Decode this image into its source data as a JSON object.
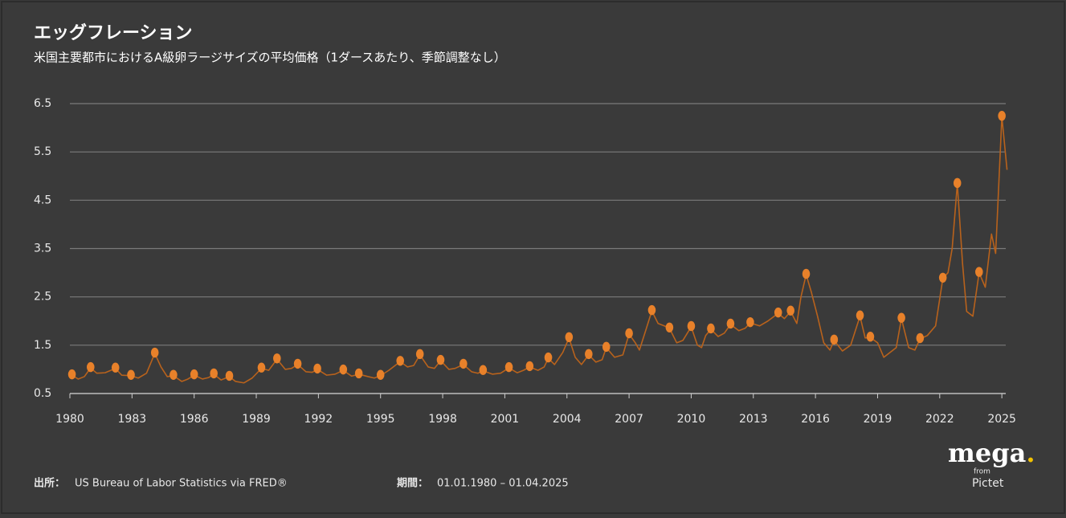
{
  "chart_data": {
    "type": "line",
    "title": "エッグフレーション",
    "subtitle": "米国主要都市におけるA級卵ラージサイズの平均価格（1ダースあたり、季節調整なし）",
    "color": "#b8621c",
    "x": [
      1980.0,
      1980.1,
      1980.4,
      1980.7,
      1981.0,
      1981.3,
      1981.7,
      1982.2,
      1982.5,
      1982.95,
      1983.3,
      1983.7,
      1984.1,
      1984.4,
      1984.7,
      1985.0,
      1985.4,
      1985.7,
      1986.0,
      1986.4,
      1986.7,
      1986.95,
      1987.3,
      1987.7,
      1988.0,
      1988.4,
      1988.8,
      1989.25,
      1989.6,
      1990.0,
      1990.4,
      1990.7,
      1991.0,
      1991.4,
      1991.7,
      1991.95,
      1992.4,
      1992.8,
      1993.2,
      1993.6,
      1993.95,
      1994.4,
      1994.7,
      1995.0,
      1995.4,
      1995.95,
      1996.3,
      1996.6,
      1996.9,
      1997.3,
      1997.6,
      1997.9,
      1998.3,
      1998.6,
      1999.0,
      1999.4,
      1999.7,
      1999.95,
      2000.4,
      2000.8,
      2001.2,
      2001.6,
      2001.9,
      2002.2,
      2002.6,
      2002.9,
      2003.1,
      2003.4,
      2003.8,
      2004.1,
      2004.4,
      2004.7,
      2005.05,
      2005.4,
      2005.7,
      2005.9,
      2006.3,
      2006.7,
      2007.0,
      2007.3,
      2007.5,
      2007.8,
      2008.1,
      2008.4,
      2008.7,
      2008.95,
      2009.3,
      2009.6,
      2010.0,
      2010.3,
      2010.5,
      2010.7,
      2010.95,
      2011.3,
      2011.6,
      2011.9,
      2012.3,
      2012.6,
      2012.85,
      2013.3,
      2013.7,
      2014.2,
      2014.5,
      2014.8,
      2015.1,
      2015.3,
      2015.55,
      2015.8,
      2016.1,
      2016.4,
      2016.7,
      2016.9,
      2017.3,
      2017.7,
      2018.15,
      2018.4,
      2018.65,
      2019.0,
      2019.3,
      2019.6,
      2019.9,
      2020.15,
      2020.5,
      2020.8,
      2021.05,
      2021.4,
      2021.8,
      2022.15,
      2022.4,
      2022.6,
      2022.85,
      2023.1,
      2023.3,
      2023.6,
      2023.9,
      2024.2,
      2024.5,
      2024.7,
      2025.0,
      2025.25
    ],
    "values": [
      0.86,
      0.88,
      0.8,
      0.85,
      1.03,
      0.92,
      0.93,
      1.02,
      0.88,
      0.87,
      0.82,
      0.92,
      1.33,
      1.05,
      0.85,
      0.87,
      0.75,
      0.8,
      0.88,
      0.8,
      0.83,
      0.9,
      0.78,
      0.85,
      0.75,
      0.72,
      0.82,
      1.02,
      0.98,
      1.21,
      1.0,
      1.02,
      1.1,
      0.95,
      0.94,
      1.0,
      0.88,
      0.9,
      0.98,
      0.86,
      0.9,
      0.85,
      0.82,
      0.87,
      0.98,
      1.16,
      1.05,
      1.08,
      1.3,
      1.05,
      1.02,
      1.18,
      1.0,
      1.02,
      1.1,
      0.95,
      0.92,
      0.97,
      0.9,
      0.92,
      1.03,
      0.93,
      0.98,
      1.05,
      0.98,
      1.05,
      1.23,
      1.1,
      1.35,
      1.65,
      1.25,
      1.1,
      1.3,
      1.15,
      1.2,
      1.45,
      1.25,
      1.3,
      1.73,
      1.55,
      1.4,
      1.8,
      2.21,
      1.95,
      1.9,
      1.85,
      1.55,
      1.6,
      1.88,
      1.5,
      1.45,
      1.7,
      1.83,
      1.68,
      1.75,
      1.93,
      1.8,
      1.85,
      1.96,
      1.9,
      2.0,
      2.16,
      2.05,
      2.2,
      1.95,
      2.5,
      2.96,
      2.6,
      2.1,
      1.55,
      1.4,
      1.6,
      1.38,
      1.5,
      2.1,
      1.65,
      1.66,
      1.55,
      1.25,
      1.35,
      1.45,
      2.05,
      1.45,
      1.4,
      1.63,
      1.7,
      1.9,
      2.88,
      3.0,
      3.5,
      4.84,
      3.2,
      2.2,
      2.1,
      3.0,
      2.7,
      3.8,
      3.4,
      6.23,
      5.13
    ],
    "markers": {
      "color": "#e8812a",
      "x": [
        1980.1,
        1981.0,
        1982.2,
        1982.95,
        1984.1,
        1985.0,
        1986.0,
        1986.95,
        1987.7,
        1989.25,
        1990.0,
        1991.0,
        1991.95,
        1993.2,
        1993.95,
        1995.0,
        1995.95,
        1996.9,
        1997.9,
        1999.0,
        1999.95,
        2001.2,
        2002.2,
        2003.1,
        2004.1,
        2005.05,
        2005.9,
        2007.0,
        2008.1,
        2008.95,
        2010.0,
        2010.95,
        2011.9,
        2012.85,
        2014.2,
        2014.8,
        2015.55,
        2016.9,
        2018.15,
        2018.65,
        2020.15,
        2021.05,
        2022.15,
        2022.85,
        2023.9,
        2025.0
      ],
      "values": [
        0.88,
        1.03,
        1.02,
        0.87,
        1.33,
        0.87,
        0.88,
        0.9,
        0.85,
        1.02,
        1.21,
        1.1,
        1.0,
        0.98,
        0.9,
        0.87,
        1.16,
        1.3,
        1.18,
        1.1,
        0.97,
        1.03,
        1.05,
        1.23,
        1.65,
        1.3,
        1.45,
        1.73,
        2.21,
        1.85,
        1.88,
        1.83,
        1.93,
        1.96,
        2.16,
        2.2,
        2.96,
        1.6,
        2.1,
        1.66,
        2.05,
        1.63,
        2.88,
        4.84,
        3.0,
        6.23
      ]
    },
    "xlim": [
      1980,
      2025.25
    ],
    "xticks": [
      1980,
      1983,
      1986,
      1989,
      1992,
      1995,
      1998,
      2001,
      2004,
      2007,
      2010,
      2013,
      2016,
      2019,
      2022,
      2025
    ],
    "ylim": [
      0.5,
      6.5
    ],
    "yticks": [
      0.5,
      1.5,
      2.5,
      3.5,
      4.5,
      5.5,
      6.5
    ],
    "grid": true
  },
  "footer": {
    "source_label": "出所：",
    "source": "US Bureau of Labor Statistics via FRED®",
    "period_label": "期間：",
    "period": "01.01.1980 – 01.04.2025",
    "logo": {
      "word": "mega",
      "dot": ".",
      "from": "from",
      "brand": "Pictet"
    }
  }
}
